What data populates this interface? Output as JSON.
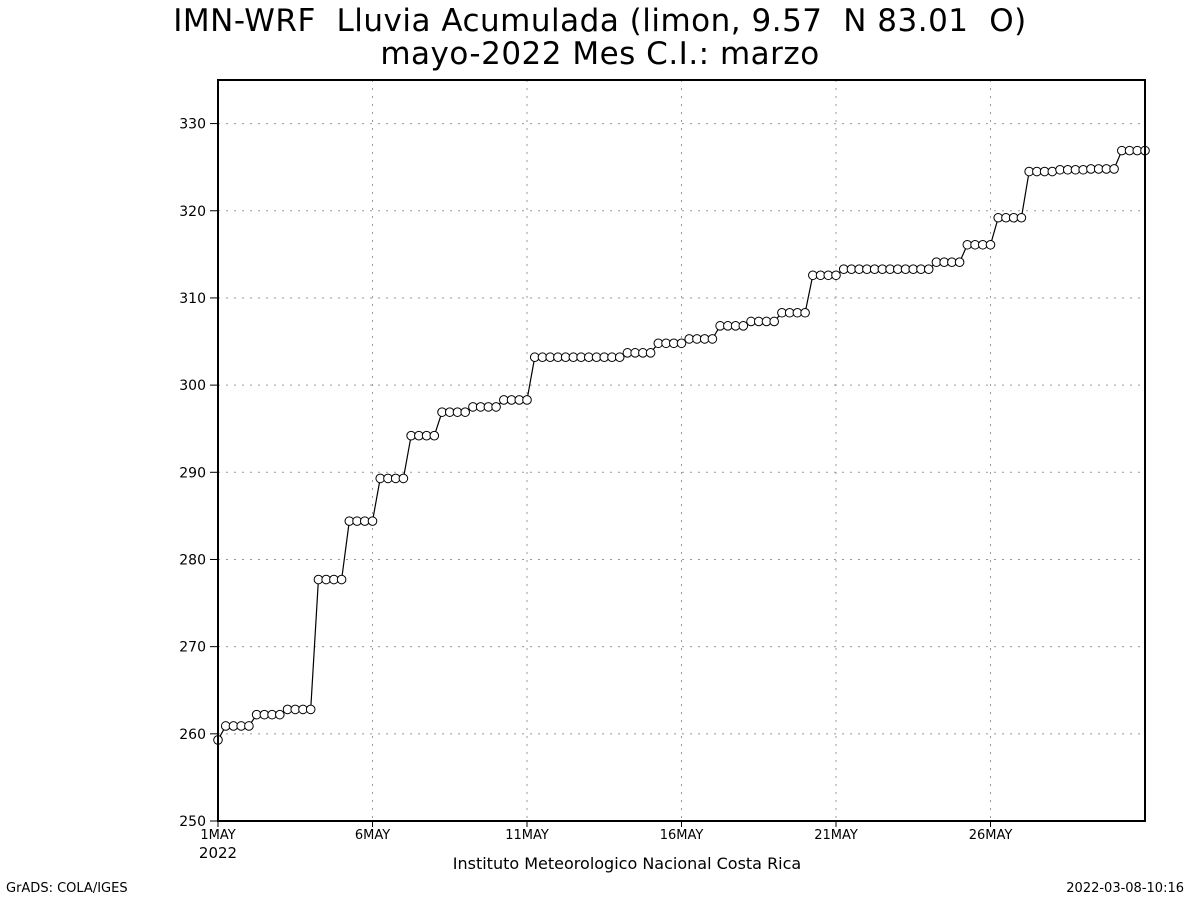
{
  "chart_data": {
    "type": "line",
    "title": "IMN-WRF  Lluvia Acumulada (limon, 9.57  N 83.01  O)",
    "subtitle": "mayo-2022 Mes C.I.: marzo",
    "xlabel": "Instituto Meteorologico Nacional Costa Rica",
    "ylabel": "",
    "xlim": [
      1,
      31
    ],
    "ylim": [
      250,
      335
    ],
    "yticks": [
      250,
      260,
      270,
      280,
      290,
      300,
      310,
      320,
      330
    ],
    "xticks": [
      {
        "x": 1,
        "label": "1MAY",
        "sublabel": "2022"
      },
      {
        "x": 6,
        "label": "6MAY",
        "sublabel": ""
      },
      {
        "x": 11,
        "label": "11MAY",
        "sublabel": ""
      },
      {
        "x": 16,
        "label": "16MAY",
        "sublabel": ""
      },
      {
        "x": 21,
        "label": "21MAY",
        "sublabel": ""
      },
      {
        "x": 26,
        "label": "26MAY",
        "sublabel": ""
      }
    ],
    "grid": true,
    "marker": "open-circle",
    "line_color": "#000000",
    "series": [
      {
        "x": [
          1.0,
          1.25,
          1.5,
          1.75,
          2.0,
          2.25,
          2.5,
          2.75,
          3.0,
          3.25,
          3.5,
          3.75,
          4.0,
          4.25,
          4.5,
          4.75,
          5.0,
          5.25,
          5.5,
          5.75,
          6.0,
          6.25,
          6.5,
          6.75,
          7.0,
          7.25,
          7.5,
          7.75,
          8.0,
          8.25,
          8.5,
          8.75,
          9.0,
          9.25,
          9.5,
          9.75,
          10.0,
          10.25,
          10.5,
          10.75,
          11.0,
          11.25,
          11.5,
          11.75,
          12.0,
          12.25,
          12.5,
          12.75,
          13.0,
          13.25,
          13.5,
          13.75,
          14.0,
          14.25,
          14.5,
          14.75,
          15.0,
          15.25,
          15.5,
          15.75,
          16.0,
          16.25,
          16.5,
          16.75,
          17.0,
          17.25,
          17.5,
          17.75,
          18.0,
          18.25,
          18.5,
          18.75,
          19.0,
          19.25,
          19.5,
          19.75,
          20.0,
          20.25,
          20.5,
          20.75,
          21.0,
          21.25,
          21.5,
          21.75,
          22.0,
          22.25,
          22.5,
          22.75,
          23.0,
          23.25,
          23.5,
          23.75,
          24.0,
          24.25,
          24.5,
          24.75,
          25.0,
          25.25,
          25.5,
          25.75,
          26.0,
          26.25,
          26.5,
          26.75,
          27.0,
          27.25,
          27.5,
          27.75,
          28.0,
          28.25,
          28.5,
          28.75,
          29.0,
          29.25,
          29.5,
          29.75,
          30.0,
          30.25,
          30.5,
          30.75,
          31.0
        ],
        "y": [
          259.3,
          260.9,
          260.9,
          260.9,
          260.9,
          262.2,
          262.2,
          262.2,
          262.2,
          262.8,
          262.8,
          262.8,
          262.8,
          277.7,
          277.7,
          277.7,
          277.7,
          284.4,
          284.4,
          284.4,
          284.4,
          289.3,
          289.3,
          289.3,
          289.3,
          294.2,
          294.2,
          294.2,
          294.2,
          296.9,
          296.9,
          296.9,
          296.9,
          297.5,
          297.5,
          297.5,
          297.5,
          298.3,
          298.3,
          298.3,
          298.3,
          303.2,
          303.2,
          303.2,
          303.2,
          303.2,
          303.2,
          303.2,
          303.2,
          303.2,
          303.2,
          303.2,
          303.2,
          303.7,
          303.7,
          303.7,
          303.7,
          304.8,
          304.8,
          304.8,
          304.8,
          305.3,
          305.3,
          305.3,
          305.3,
          306.8,
          306.8,
          306.8,
          306.8,
          307.3,
          307.3,
          307.3,
          307.3,
          308.3,
          308.3,
          308.3,
          308.3,
          312.6,
          312.6,
          312.6,
          312.6,
          313.3,
          313.3,
          313.3,
          313.3,
          313.3,
          313.3,
          313.3,
          313.3,
          313.3,
          313.3,
          313.3,
          313.3,
          314.1,
          314.1,
          314.1,
          314.1,
          316.1,
          316.1,
          316.1,
          316.1,
          319.2,
          319.2,
          319.2,
          319.2,
          324.5,
          324.5,
          324.5,
          324.5,
          324.7,
          324.7,
          324.7,
          324.7,
          324.8,
          324.8,
          324.8,
          324.8,
          326.9,
          326.9,
          326.9,
          326.9
        ]
      }
    ]
  },
  "footer": {
    "credit_left": "GrADS: COLA/IGES",
    "credit_right": "2022-03-08-10:16"
  }
}
